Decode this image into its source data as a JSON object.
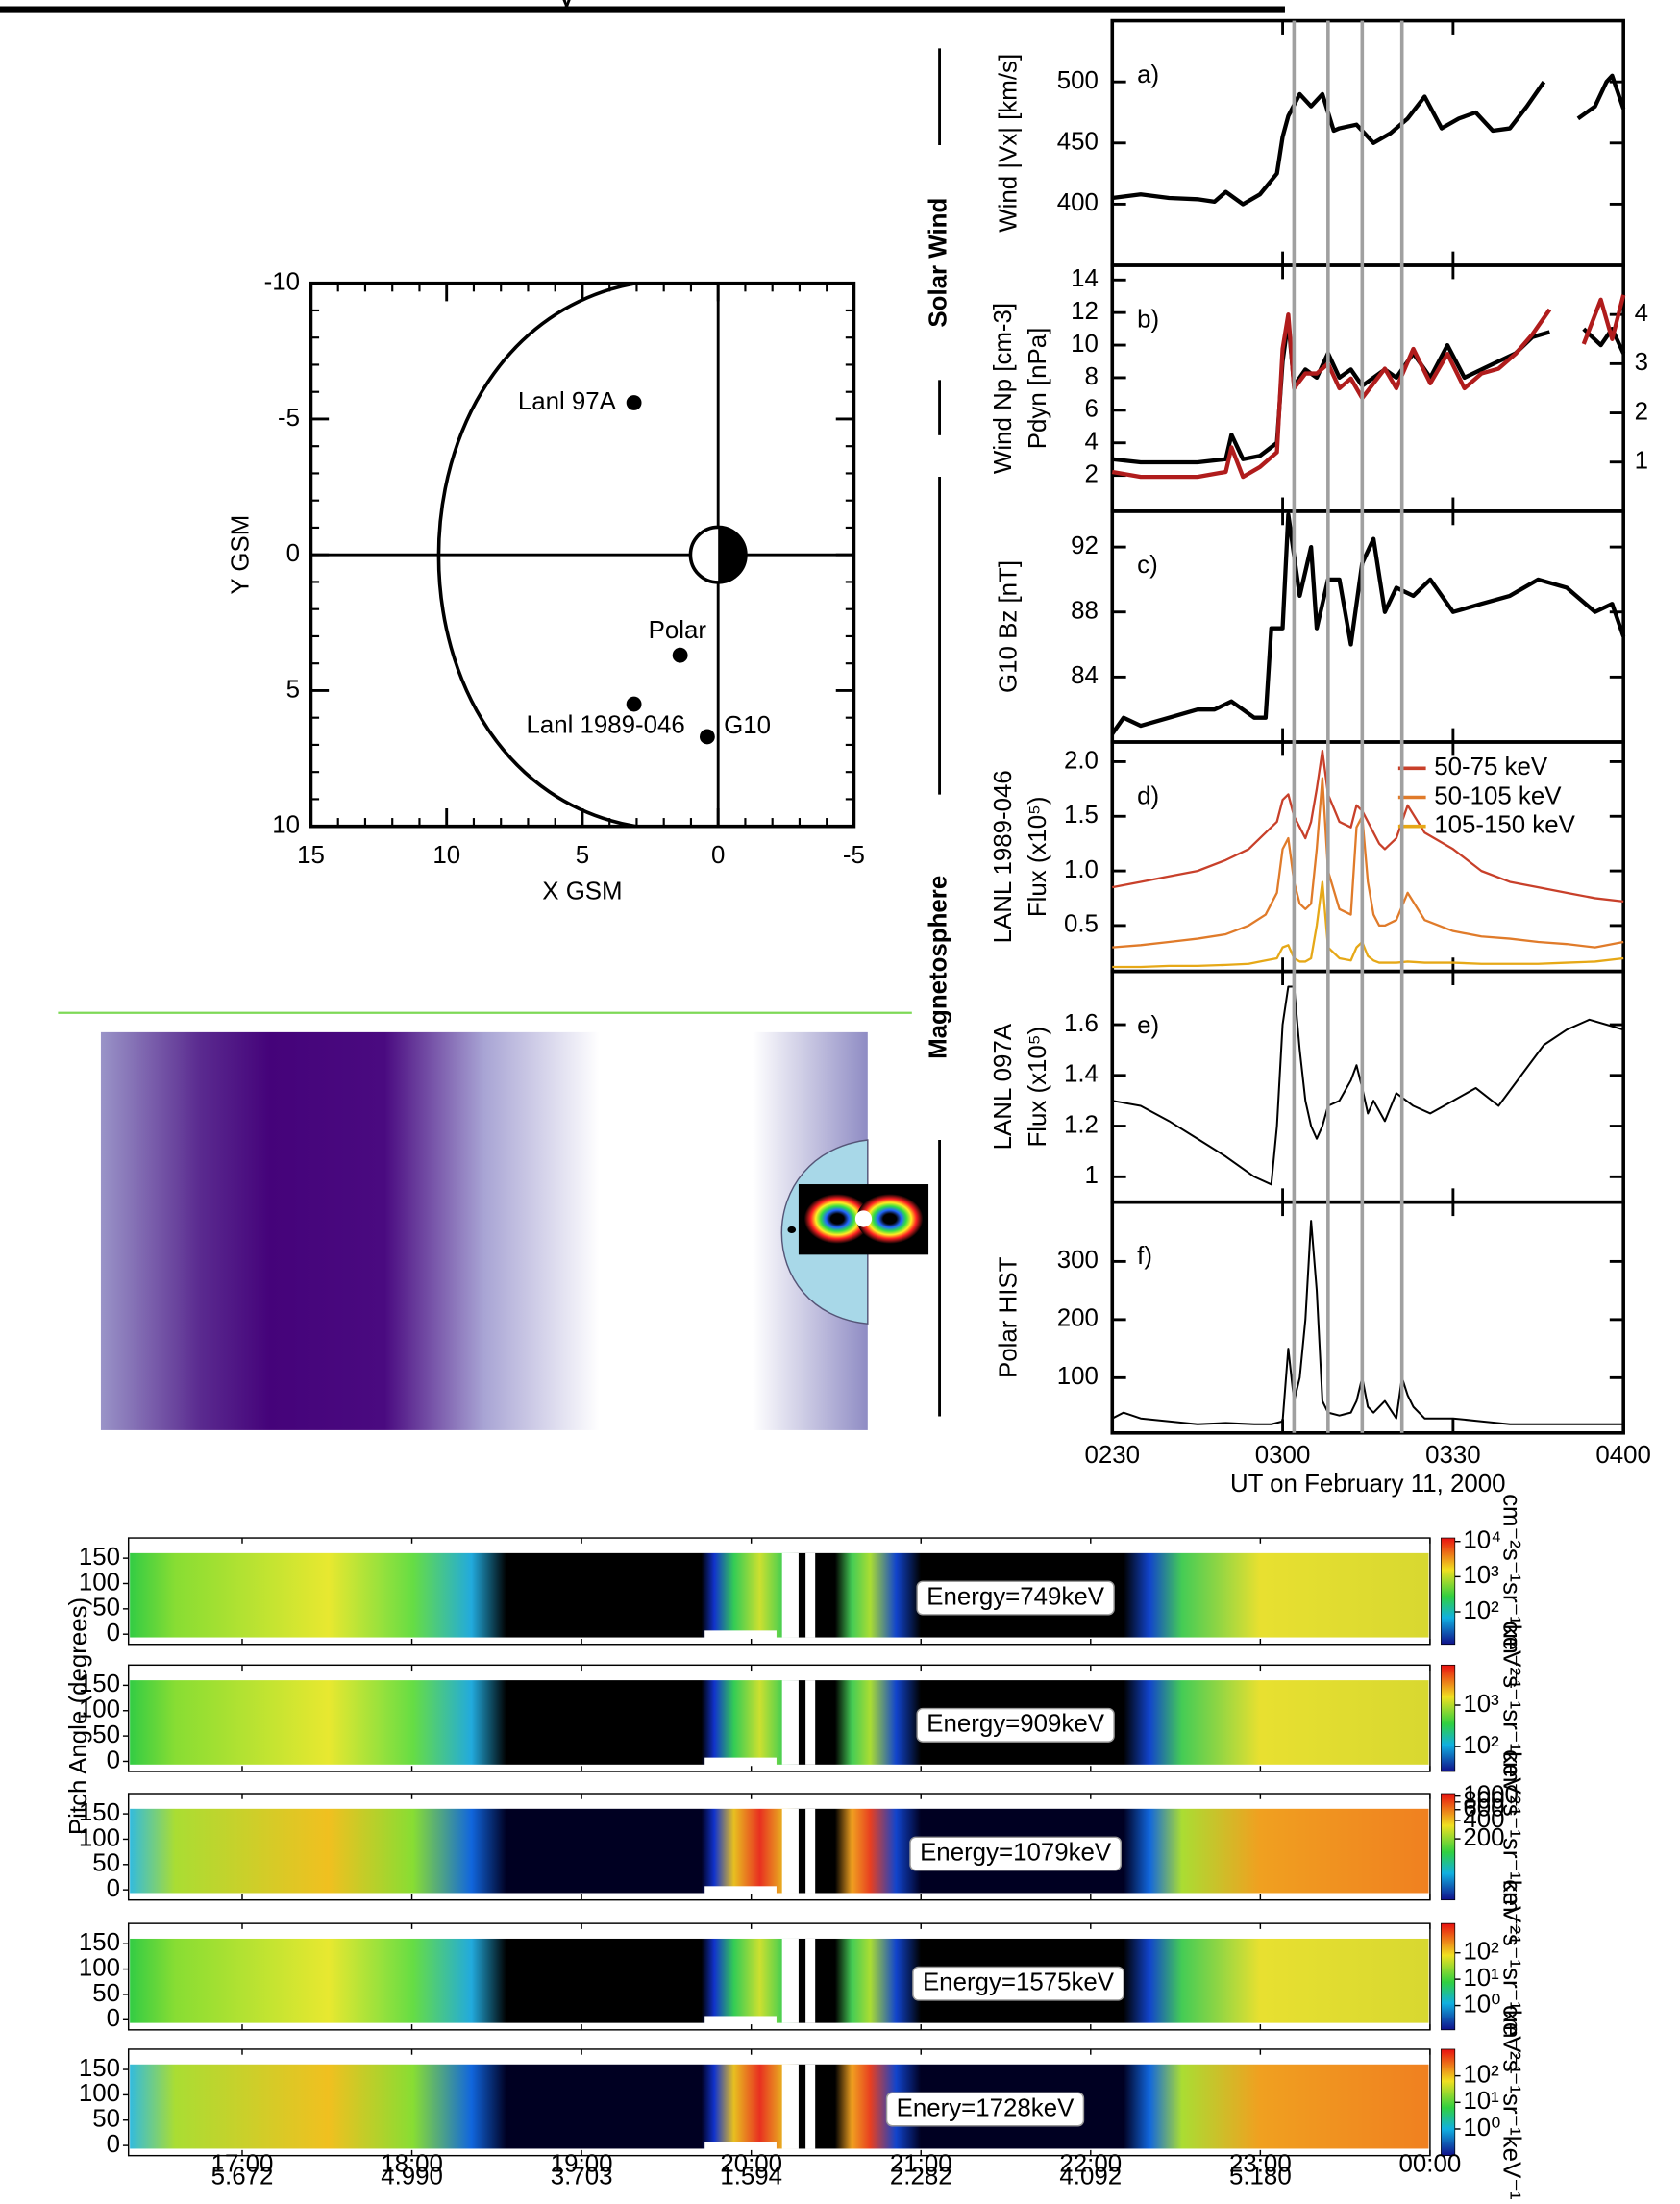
{
  "header": {
    "title_fragment": "y"
  },
  "chart_data": [
    {
      "type": "scatter",
      "xlabel": "X GSM",
      "ylabel": "Y GSM",
      "xlim": [
        15,
        -5
      ],
      "ylim": [
        -10,
        10
      ],
      "xticks": [
        15,
        10,
        5,
        0,
        -5
      ],
      "yticks": [
        -10,
        -5,
        0,
        5,
        10
      ],
      "labels": [
        "Lanl 97A",
        "Polar",
        "Lanl 1989-046",
        "G10"
      ],
      "x": [
        3.1,
        1.4,
        3.1,
        0.4
      ],
      "values": [
        -5.6,
        3.7,
        5.5,
        6.7
      ],
      "color": "#000000"
    },
    {
      "type": "line",
      "xlabel": "UT on February 11, 2000",
      "xlim": [
        150,
        240
      ],
      "xticks": [
        {
          "value": 150,
          "label": "0230"
        },
        {
          "value": 180,
          "label": "0300"
        },
        {
          "value": 210,
          "label": "0330"
        },
        {
          "value": 240,
          "label": "0400"
        }
      ],
      "markers": [
        182,
        188,
        194,
        201
      ],
      "group_labels": [
        "Solar Wind",
        "Magnetosphere"
      ],
      "panels": [
        {
          "label": "a)",
          "ylabel": [
            "Wind |Vx| [km/s]"
          ],
          "ylim": [
            350,
            550
          ],
          "yticks": [
            400,
            450,
            500
          ],
          "x": [
            150,
            155,
            160,
            165,
            168,
            170,
            173,
            176,
            179,
            180,
            181,
            183,
            185,
            187,
            189,
            190,
            193,
            196,
            199,
            202,
            205,
            208,
            211,
            214,
            217,
            220,
            223,
            226,
            229,
            232,
            235,
            237,
            238,
            240
          ],
          "series": [
            {
              "color": "#000000",
              "values": [
                405,
                408,
                405,
                404,
                402,
                410,
                400,
                408,
                425,
                455,
                472,
                490,
                480,
                490,
                460,
                462,
                465,
                450,
                458,
                470,
                488,
                462,
                470,
                475,
                460,
                462,
                480,
                500,
                null,
                470,
                480,
                500,
                505,
                478
              ]
            }
          ]
        },
        {
          "label": "b)",
          "ylabel": [
            "Wind Np [cm-3]",
            "Pdyn [nPa]"
          ],
          "ylim": [
            -0.2,
            14.9
          ],
          "yticks": [
            2,
            4,
            6,
            8,
            10,
            12,
            14
          ],
          "y2lim": [
            0,
            5
          ],
          "y2ticks": [
            1,
            2,
            3,
            4
          ],
          "x": [
            150,
            155,
            160,
            165,
            170,
            171,
            173,
            176,
            179,
            180,
            181,
            182,
            184,
            186,
            188,
            190,
            192,
            194,
            196,
            198,
            200,
            203,
            206,
            209,
            212,
            215,
            218,
            221,
            224,
            227,
            230,
            233,
            236,
            238,
            240
          ],
          "series": [
            {
              "color": "#000000",
              "values": [
                3,
                2.8,
                2.8,
                2.8,
                3.0,
                4.5,
                3.0,
                3.2,
                4,
                9,
                11.5,
                7.5,
                8.5,
                8,
                9.5,
                8,
                8.5,
                7.5,
                8,
                8.5,
                8,
                9.5,
                8,
                10,
                8,
                8.5,
                9,
                9.5,
                10.5,
                10.8,
                null,
                11,
                10,
                11,
                9.5
              ]
            },
            {
              "color": "#b01c1c",
              "axis": "y2",
              "values": [
                0.8,
                0.7,
                0.7,
                0.7,
                0.8,
                1.3,
                0.7,
                0.9,
                1.2,
                3.3,
                4.0,
                2.5,
                2.8,
                2.8,
                3.0,
                2.5,
                2.7,
                2.3,
                2.6,
                2.9,
                2.5,
                3.3,
                2.6,
                3.2,
                2.5,
                2.8,
                2.9,
                3.2,
                3.6,
                4.1,
                null,
                3.4,
                4.3,
                3.5,
                4.4
              ]
            }
          ]
        },
        {
          "label": "c)",
          "ylabel": [
            "G10 Bz [nT]"
          ],
          "ylim": [
            80,
            94.2
          ],
          "yticks": [
            84,
            88,
            92
          ],
          "x": [
            150,
            152,
            155,
            160,
            165,
            168,
            171,
            173,
            175,
            177,
            178,
            180,
            181,
            183,
            185,
            186,
            188,
            190,
            192,
            194,
            196,
            198,
            200,
            203,
            206,
            210,
            215,
            220,
            225,
            230,
            235,
            238,
            240
          ],
          "series": [
            {
              "color": "#000000",
              "values": [
                80.5,
                81.5,
                81,
                81.5,
                82,
                82,
                82.5,
                82,
                81.5,
                81.5,
                87,
                87,
                94,
                89,
                92,
                87,
                90,
                90,
                86,
                91,
                92.5,
                88,
                89.5,
                89,
                90,
                88,
                88.5,
                89,
                90,
                89.5,
                88,
                88.5,
                86.5
              ]
            }
          ]
        },
        {
          "label": "d)",
          "ylabel": [
            "LANL 1989-046",
            "Flux (x10⁵)"
          ],
          "ylim": [
            0.08,
            2.18
          ],
          "yticks": [
            0.5,
            {
              "value": 1,
              "label": "1.0"
            },
            1.5,
            {
              "value": 2,
              "label": "2.0"
            }
          ],
          "x": [
            150,
            155,
            160,
            165,
            170,
            174,
            177,
            179,
            180,
            181,
            182,
            183,
            184,
            185,
            186,
            187,
            188,
            190,
            192,
            193,
            194,
            195,
            196,
            197,
            198,
            200,
            202,
            205,
            210,
            215,
            220,
            225,
            230,
            235,
            240
          ],
          "series": [
            {
              "name": "50-75 keV",
              "color": "#c8402a",
              "values": [
                0.85,
                0.9,
                0.95,
                1.0,
                1.1,
                1.2,
                1.35,
                1.45,
                1.65,
                1.7,
                1.5,
                1.4,
                1.3,
                1.45,
                1.75,
                2.1,
                1.7,
                1.45,
                1.4,
                1.6,
                1.55,
                1.45,
                1.35,
                1.25,
                1.2,
                1.3,
                1.6,
                1.35,
                1.2,
                1.0,
                0.9,
                0.85,
                0.8,
                0.75,
                0.72
              ]
            },
            {
              "name": "50-105 keV",
              "color": "#e07b2a",
              "values": [
                0.3,
                0.32,
                0.35,
                0.38,
                0.42,
                0.5,
                0.6,
                0.8,
                1.2,
                1.3,
                0.9,
                0.7,
                0.65,
                0.7,
                1.2,
                1.85,
                1.0,
                0.65,
                0.6,
                1.4,
                1.5,
                0.9,
                0.6,
                0.5,
                0.5,
                0.55,
                0.8,
                0.55,
                0.45,
                0.4,
                0.38,
                0.35,
                0.33,
                0.3,
                0.35
              ]
            },
            {
              "name": "105-150 keV",
              "color": "#e6a817",
              "values": [
                0.12,
                0.12,
                0.13,
                0.13,
                0.14,
                0.15,
                0.18,
                0.2,
                0.3,
                0.32,
                0.2,
                0.17,
                0.17,
                0.2,
                0.5,
                0.9,
                0.3,
                0.2,
                0.18,
                0.3,
                0.35,
                0.22,
                0.18,
                0.16,
                0.16,
                0.16,
                0.17,
                0.16,
                0.16,
                0.15,
                0.15,
                0.15,
                0.16,
                0.17,
                0.2
              ]
            }
          ]
        },
        {
          "label": "e)",
          "ylabel": [
            "LANL 097A",
            "Flux (x10⁵)"
          ],
          "ylim": [
            0.9,
            1.81
          ],
          "yticks": [
            1,
            1.2,
            1.4,
            1.6
          ],
          "x": [
            150,
            155,
            160,
            165,
            170,
            175,
            178,
            179,
            180,
            181,
            182,
            183,
            184,
            185,
            186,
            187,
            188,
            190,
            192,
            193,
            194,
            195,
            196,
            198,
            200,
            203,
            206,
            210,
            214,
            218,
            222,
            226,
            230,
            234,
            237,
            240
          ],
          "series": [
            {
              "color": "#000000",
              "values": [
                1.3,
                1.28,
                1.22,
                1.15,
                1.08,
                1.0,
                0.97,
                1.2,
                1.6,
                1.75,
                1.75,
                1.5,
                1.3,
                1.2,
                1.15,
                1.2,
                1.28,
                1.3,
                1.38,
                1.44,
                1.35,
                1.25,
                1.3,
                1.22,
                1.33,
                1.28,
                1.25,
                1.3,
                1.35,
                1.28,
                1.4,
                1.52,
                1.58,
                1.62,
                1.6,
                1.58
              ]
            }
          ]
        },
        {
          "label": "f)",
          "ylabel": [
            "Polar HIST"
          ],
          "ylim": [
            5,
            402
          ],
          "yticks": [
            100,
            200,
            300
          ],
          "x": [
            150,
            152,
            155,
            160,
            165,
            170,
            175,
            178,
            180,
            181,
            182,
            183,
            184,
            185,
            186,
            187,
            188,
            190,
            192,
            193,
            194,
            195,
            196,
            198,
            200,
            201,
            202,
            203,
            205,
            210,
            215,
            220,
            225,
            230,
            235,
            240
          ],
          "series": [
            {
              "color": "#000000",
              "values": [
                30,
                40,
                30,
                25,
                20,
                22,
                20,
                20,
                25,
                150,
                60,
                100,
                200,
                370,
                250,
                60,
                40,
                35,
                40,
                60,
                100,
                50,
                40,
                60,
                30,
                100,
                70,
                50,
                30,
                30,
                25,
                20,
                20,
                20,
                20,
                20
              ]
            }
          ]
        }
      ]
    },
    {
      "type": "spectrogram",
      "ylabel": "Pitch Angle (degrees)",
      "xlim": [
        16.33,
        24
      ],
      "xticks": [
        {
          "value": 17,
          "label": "17:00"
        },
        {
          "value": 18,
          "label": "18:00"
        },
        {
          "value": 19,
          "label": "19:00"
        },
        {
          "value": 20,
          "label": "20:00"
        },
        {
          "value": 21,
          "label": "21:00"
        },
        {
          "value": 22,
          "label": "22:00"
        },
        {
          "value": 23,
          "label": "23:00"
        },
        {
          "value": 24,
          "label": "00:00"
        }
      ],
      "xtick_sublabels": [
        5.672,
        {
          "value": 4.99,
          "label": "4.990"
        },
        3.703,
        1.594,
        2.282,
        4.092,
        {
          "value": 5.18,
          "label": "5.180"
        }
      ],
      "colorbar_log": true,
      "panels": [
        {
          "label": "Energy=749keV",
          "ylim": [
            -20,
            190
          ],
          "yticks": [
            0,
            50,
            100,
            150
          ],
          "colorbar_unit": "cm⁻²s⁻¹sr⁻¹keV⁻¹",
          "colorbar_lim": [
            12,
            12600
          ],
          "colorbar_ticks": [
            {
              "value": 10000,
              "label": "10⁴"
            },
            {
              "value": 1000,
              "label": "10³"
            },
            {
              "value": 100,
              "label": "10²"
            }
          ]
        },
        {
          "label": "Energy=909keV",
          "ylim": [
            -20,
            190
          ],
          "yticks": [
            0,
            50,
            100,
            150
          ],
          "colorbar_unit": "cm⁻²s⁻¹sr⁻¹keV⁻¹",
          "colorbar_lim": [
            25,
            9300
          ],
          "colorbar_ticks": [
            {
              "value": 1000,
              "label": "10³"
            },
            {
              "value": 100,
              "label": "10²"
            }
          ]
        },
        {
          "label": "Energy=1079keV",
          "ylim": [
            -20,
            190
          ],
          "yticks": [
            0,
            50,
            100,
            150
          ],
          "colorbar_unit": "cm⁻²s⁻¹sr⁻¹keV⁻¹",
          "colorbar_lim": [
            20,
            1100
          ],
          "colorbar_ticks": [
            1000,
            800,
            600,
            400,
            200
          ]
        },
        {
          "label": "Energy=1575keV",
          "ylim": [
            -20,
            190
          ],
          "yticks": [
            0,
            50,
            100,
            150
          ],
          "colorbar_unit": "cm⁻²s⁻¹sr⁻¹keV⁻¹",
          "colorbar_lim": [
            0.12,
            1300
          ],
          "colorbar_ticks": [
            {
              "value": 100,
              "label": "10²"
            },
            {
              "value": 10,
              "label": "10¹"
            },
            {
              "value": 1,
              "label": "10⁰"
            }
          ]
        },
        {
          "label": "Enery=1728keV",
          "ylim": [
            -20,
            190
          ],
          "yticks": [
            0,
            50,
            100,
            150
          ],
          "colorbar_unit": "cm⁻²s⁻¹sr⁻¹keV⁻¹",
          "colorbar_lim": [
            0.1,
            1000
          ],
          "colorbar_ticks": [
            {
              "value": 100,
              "label": "10²"
            },
            {
              "value": 10,
              "label": "10¹"
            },
            {
              "value": 1,
              "label": "10⁰"
            }
          ]
        }
      ]
    }
  ]
}
